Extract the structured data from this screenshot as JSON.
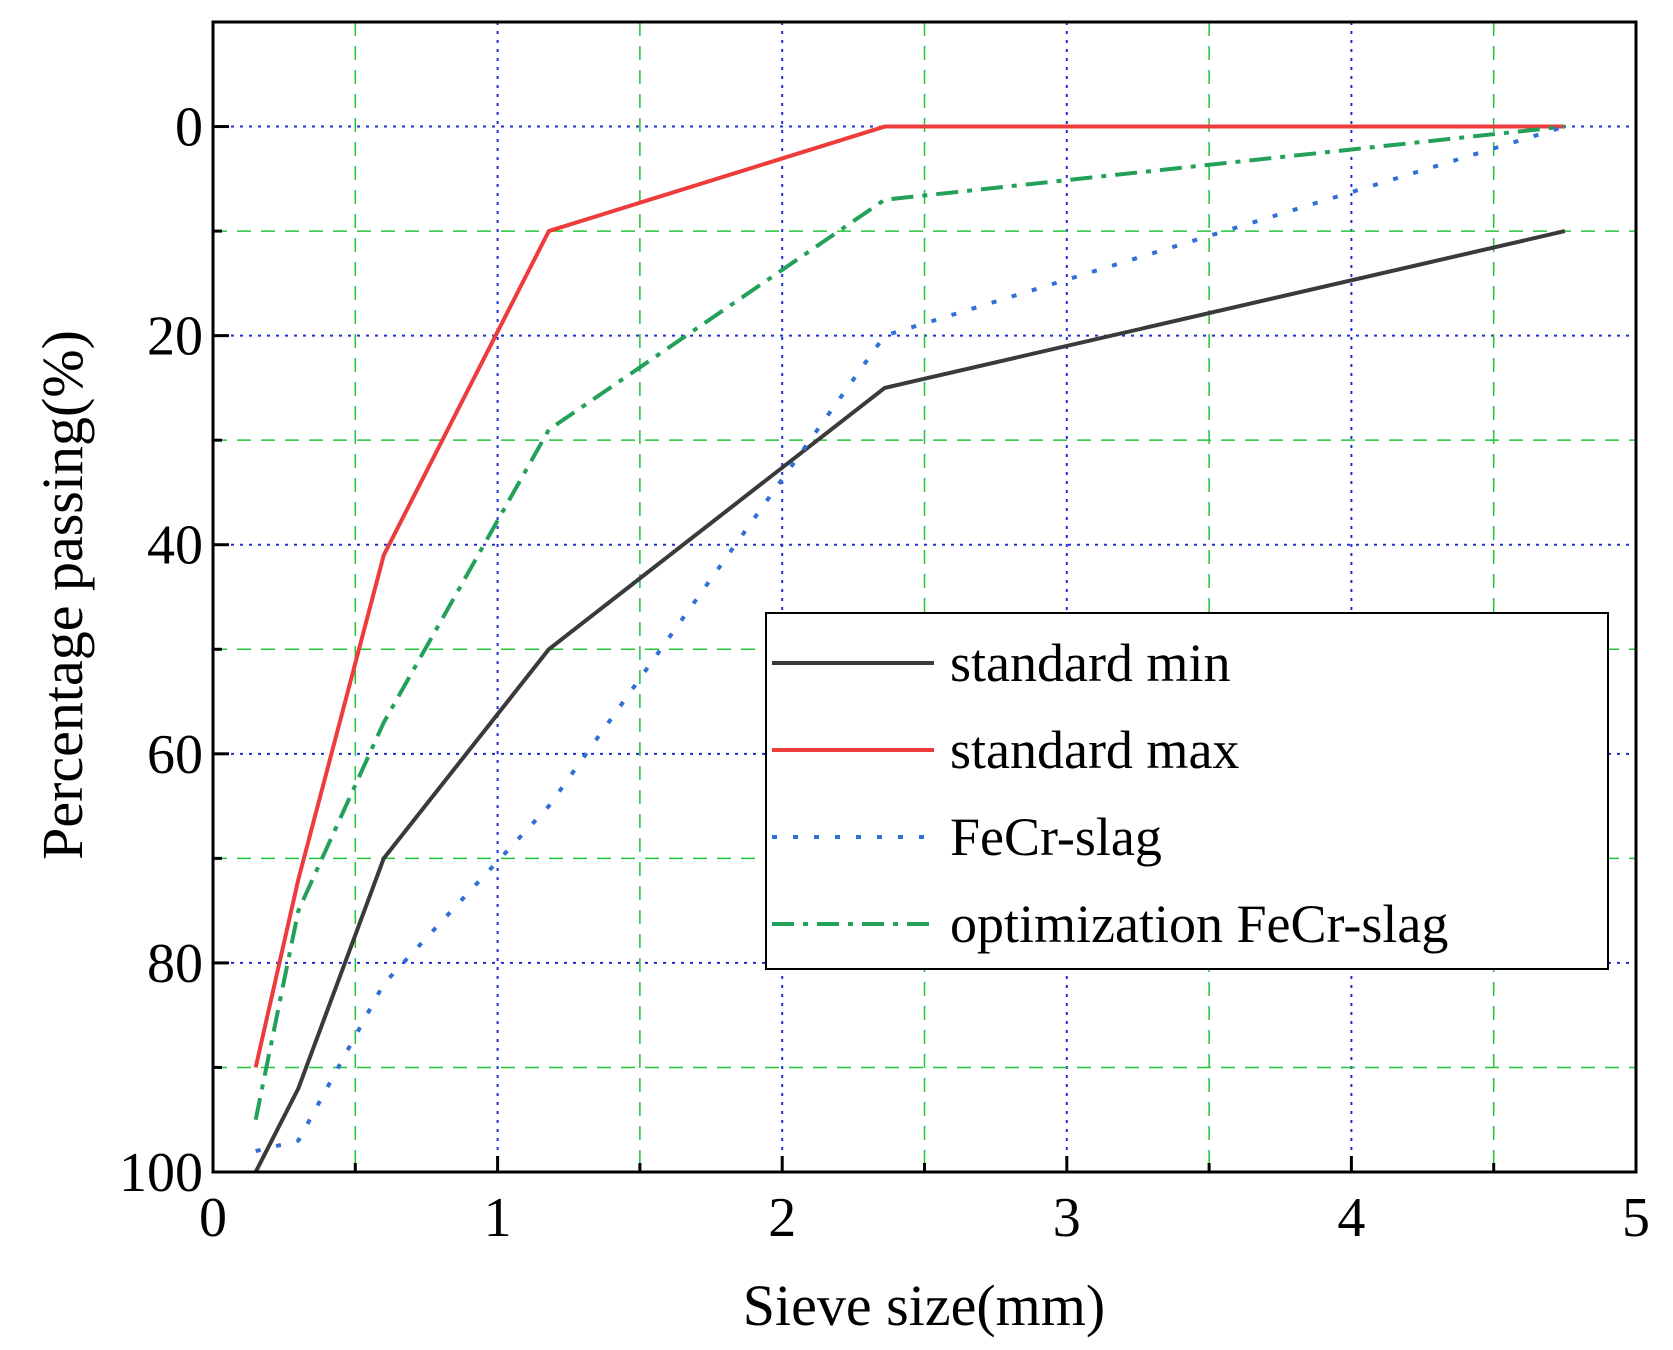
{
  "chart_data": {
    "type": "line",
    "title": "",
    "xlabel": "Sieve size(mm)",
    "ylabel": "Percentage passing(%)",
    "xlim": [
      0,
      5
    ],
    "ylim": [
      -10,
      100
    ],
    "y_inverted": true,
    "x_ticks": [
      0,
      1,
      2,
      3,
      4,
      5
    ],
    "x_tick_labels": [
      "0",
      "1",
      "2",
      "3",
      "4",
      "5"
    ],
    "y_ticks": [
      0,
      20,
      40,
      60,
      80,
      100
    ],
    "y_tick_labels": [
      "0",
      "20",
      "40",
      "60",
      "80",
      "100"
    ],
    "grid": true,
    "legend_position": "right",
    "series": [
      {
        "name": "standard min",
        "color": "#3a3a3a",
        "style": "solid",
        "x": [
          0.15,
          0.3,
          0.6,
          1.18,
          2.36,
          4.75
        ],
        "values": [
          100,
          92,
          70,
          50,
          25,
          10
        ]
      },
      {
        "name": "standard max",
        "color": "#ee3b3b",
        "style": "solid",
        "x": [
          0.15,
          0.3,
          0.6,
          1.18,
          2.36,
          4.75
        ],
        "values": [
          90,
          72,
          41,
          10,
          0,
          0
        ]
      },
      {
        "name": "FeCr-slag",
        "color": "#2f6fd6",
        "style": "dotted",
        "x": [
          0.15,
          0.3,
          0.6,
          1.18,
          2.36,
          4.75
        ],
        "values": [
          98,
          97,
          82,
          65,
          20,
          0
        ]
      },
      {
        "name": "optimization FeCr-slag",
        "color": "#23a05a",
        "style": "dashdot",
        "x": [
          0.15,
          0.3,
          0.6,
          1.18,
          2.36,
          4.75
        ],
        "values": [
          95,
          75,
          57,
          29,
          7,
          0
        ]
      }
    ]
  }
}
